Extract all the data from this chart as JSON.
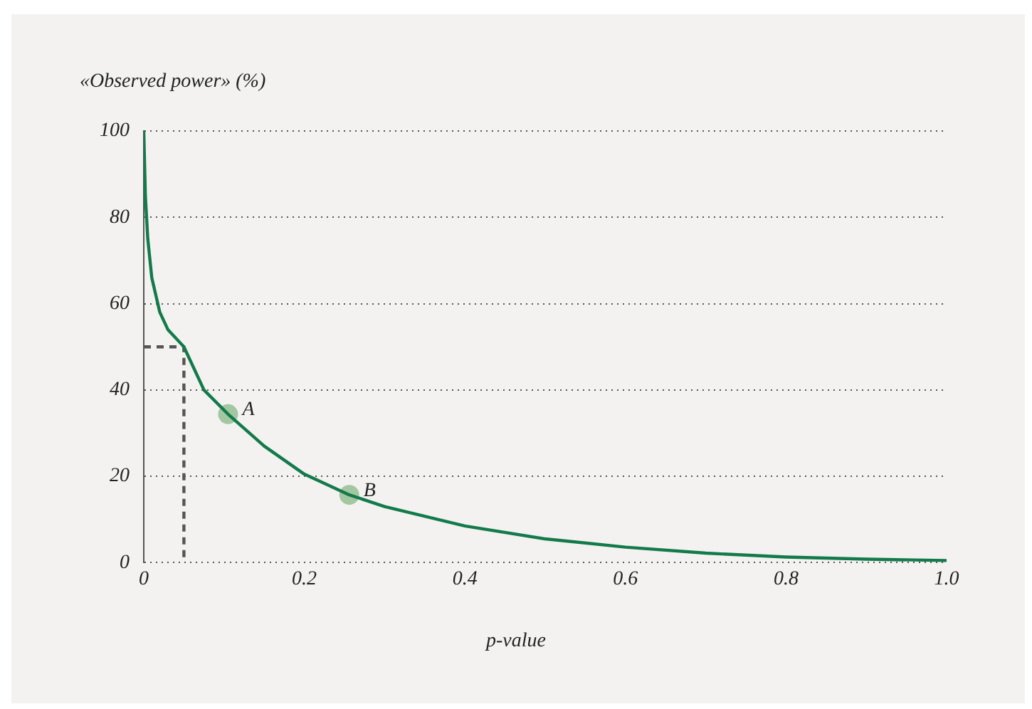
{
  "chart_data": {
    "type": "line",
    "xlabel": "p-value",
    "ylabel": "«Observed power» (%)",
    "xlim": [
      0,
      1
    ],
    "xticks": [
      0,
      0.2,
      0.4,
      0.6,
      0.8,
      {
        "value": 1,
        "label": "1.0"
      }
    ],
    "ylim": [
      0,
      100
    ],
    "yticks": [
      0,
      20,
      40,
      60,
      80,
      100
    ],
    "grid": "y",
    "legend": false,
    "series": [
      {
        "color": "#137a4a",
        "marker": "none",
        "line_style": "solid",
        "x": [
          0,
          0.002,
          0.005,
          0.01,
          0.02,
          0.03,
          0.05,
          0.075,
          0.105,
          0.15,
          0.2,
          0.256,
          0.3,
          0.4,
          0.5,
          0.6,
          0.7,
          0.8,
          0.9,
          1
        ],
        "values": [
          100,
          85,
          75,
          66,
          58,
          54,
          50,
          40,
          34.4,
          27,
          20.5,
          15.7,
          13,
          8.5,
          5.5,
          3.6,
          2.2,
          1.3,
          0.8,
          0.5
        ]
      },
      {
        "type": "line",
        "color": "#555555",
        "marker": "none",
        "line_style": "dashed",
        "x": [
          0,
          0.05,
          0.05
        ],
        "values": [
          50,
          50,
          0
        ]
      },
      {
        "type": "scatter",
        "color": "#a3c7a0",
        "marker": "circle",
        "x": [
          0.105,
          0.256
        ],
        "values": [
          34.4,
          15.7
        ]
      }
    ],
    "annotations": [
      {
        "text": "A",
        "x": 0.105,
        "y": 34.4
      },
      {
        "text": "B",
        "x": 0.256,
        "y": 15.7
      }
    ]
  }
}
